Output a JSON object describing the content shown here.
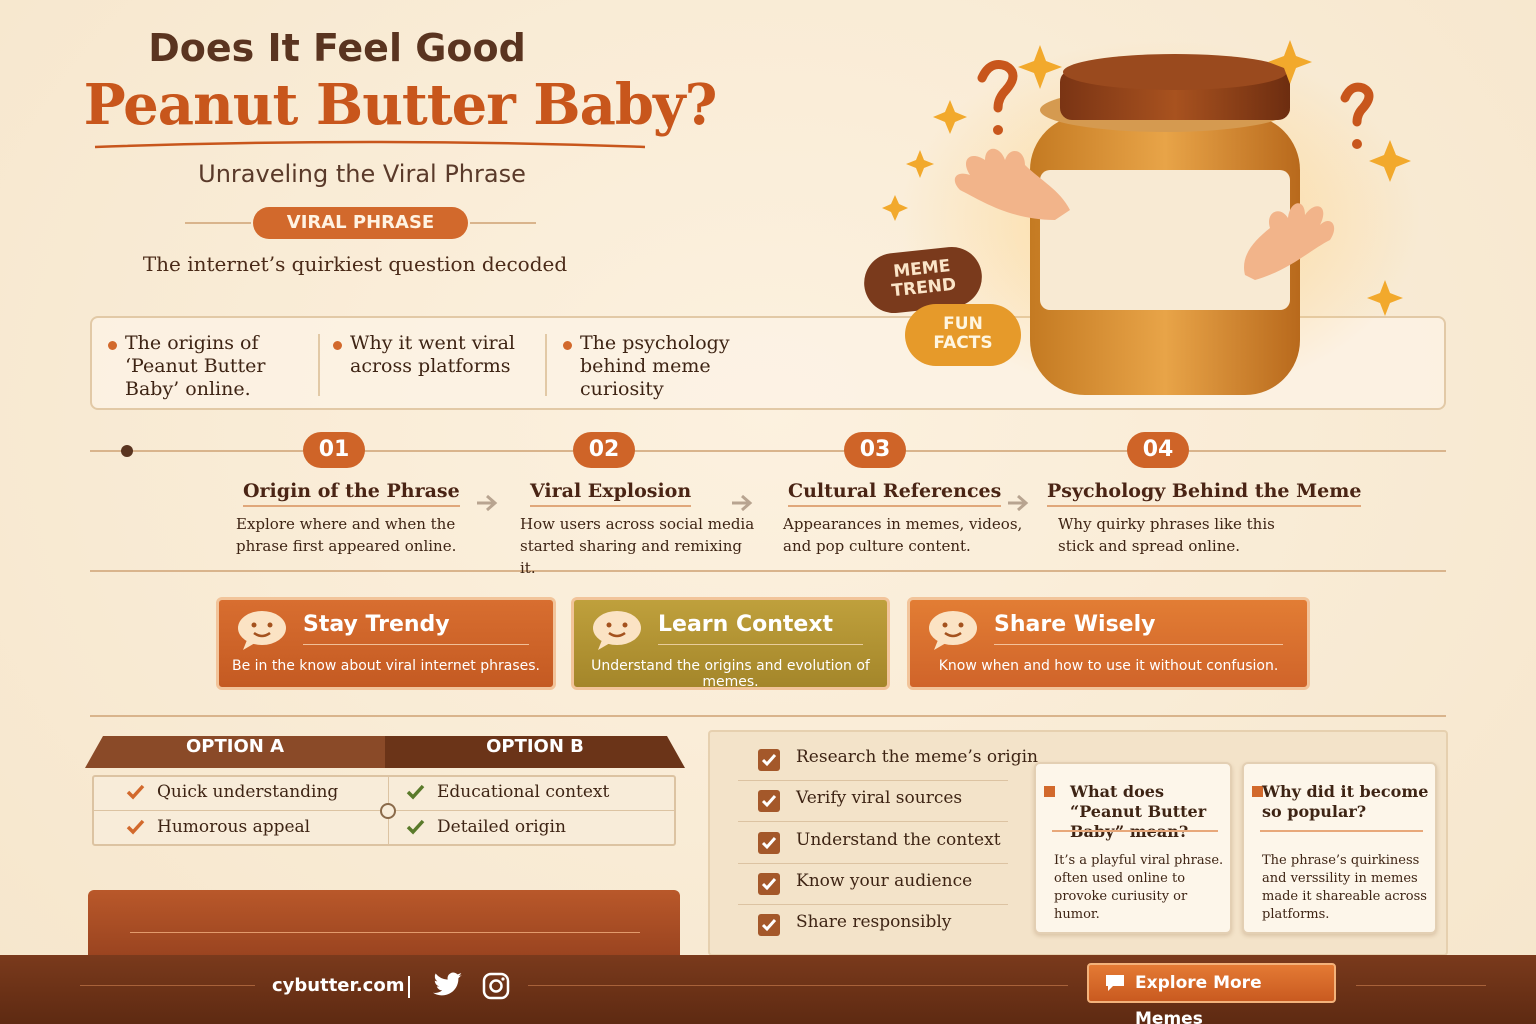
{
  "header": {
    "title_line1": "Does It Feel Good",
    "title_line2": "Peanut Butter Baby?",
    "subtitle": "Unraveling the Viral Phrase",
    "badge": "VIRAL PHRASE",
    "tagline": "The internet’s quirkiest question decoded"
  },
  "hero": {
    "badges": [
      "MEME TREND",
      "FUN FACTS"
    ]
  },
  "highlights": [
    "The origins of ‘Peanut Butter Baby’ online.",
    "Why it went viral across platforms",
    "The psychology behind meme curiosity"
  ],
  "steps": [
    {
      "number": "01",
      "title": "Origin of the Phrase",
      "text": "Explore where and when the phrase first appeared online."
    },
    {
      "number": "02",
      "title": "Viral Explosion",
      "text": "How users across social media started sharing and remixing it."
    },
    {
      "number": "03",
      "title": "Cultural References",
      "text": "Appearances in memes, videos, and pop culture content."
    },
    {
      "number": "04",
      "title": "Psychology Behind the Meme",
      "text": "Why quirky phrases like this stick and spread online."
    }
  ],
  "cards": [
    {
      "title": "Stay Trendy",
      "text": "Be in the know about viral internet phrases."
    },
    {
      "title": "Learn Context",
      "text": "Understand the origins and evolution of memes."
    },
    {
      "title": "Share Wisely",
      "text": "Know when and how to use it without confusion."
    }
  ],
  "comparison": {
    "headers": [
      "OPTION A",
      "OPTION B"
    ],
    "rows": [
      [
        "Quick understanding",
        "Educational context"
      ],
      [
        "Humorous appeal",
        "Detailed origin"
      ]
    ]
  },
  "checklist": [
    "Research the meme’s origin",
    "Verify viral sources",
    "Understand the context",
    "Know your audience",
    "Share responsibly"
  ],
  "faq": [
    {
      "question": "What does “Peanut Butter Baby” mean?",
      "answer": "It’s a playful viral phrase. often used online to provoke curiusity or humor."
    },
    {
      "question": "Why did it become so popular?",
      "answer": "The phrase’s quirkiness and verssility in memes made it shareable across platforms."
    }
  ],
  "footer": {
    "site": "cybutter.com",
    "button": "Explore More Memes"
  }
}
